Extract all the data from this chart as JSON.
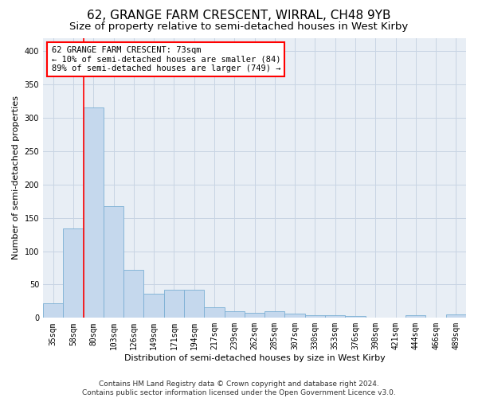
{
  "title": "62, GRANGE FARM CRESCENT, WIRRAL, CH48 9YB",
  "subtitle": "Size of property relative to semi-detached houses in West Kirby",
  "xlabel": "Distribution of semi-detached houses by size in West Kirby",
  "ylabel": "Number of semi-detached properties",
  "footer_line1": "Contains HM Land Registry data © Crown copyright and database right 2024.",
  "footer_line2": "Contains public sector information licensed under the Open Government Licence v3.0.",
  "bin_labels": [
    "35sqm",
    "58sqm",
    "80sqm",
    "103sqm",
    "126sqm",
    "149sqm",
    "171sqm",
    "194sqm",
    "217sqm",
    "239sqm",
    "262sqm",
    "285sqm",
    "307sqm",
    "330sqm",
    "353sqm",
    "376sqm",
    "398sqm",
    "421sqm",
    "444sqm",
    "466sqm",
    "489sqm"
  ],
  "bar_heights": [
    22,
    134,
    315,
    168,
    72,
    36,
    42,
    42,
    16,
    10,
    7,
    10,
    6,
    4,
    4,
    3,
    0,
    0,
    4,
    0,
    5
  ],
  "bar_color": "#c5d8ed",
  "bar_edgecolor": "#7bafd4",
  "property_label": "62 GRANGE FARM CRESCENT: 73sqm",
  "annotation_line1": "← 10% of semi-detached houses are smaller (84)",
  "annotation_line2": "89% of semi-detached houses are larger (749) →",
  "annotation_box_color": "white",
  "annotation_box_edgecolor": "red",
  "marker_line_color": "red",
  "ylim": [
    0,
    420
  ],
  "yticks": [
    0,
    50,
    100,
    150,
    200,
    250,
    300,
    350,
    400
  ],
  "background_color": "white",
  "grid_color": "#c8d4e3",
  "title_fontsize": 11,
  "subtitle_fontsize": 9.5,
  "axis_label_fontsize": 8,
  "tick_fontsize": 7,
  "footer_fontsize": 6.5,
  "annotation_fontsize": 7.5
}
